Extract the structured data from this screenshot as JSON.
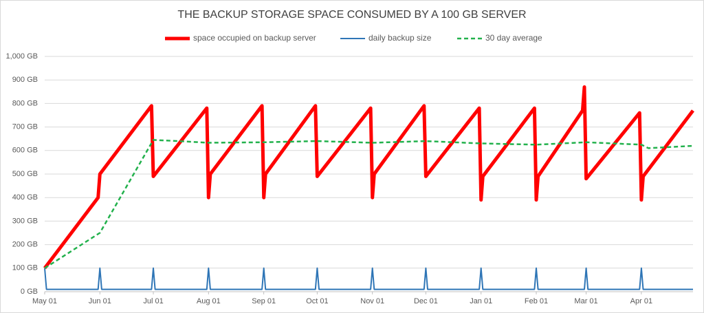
{
  "chart_data": {
    "type": "line",
    "title": "THE BACKUP STORAGE SPACE CONSUMED BY A 100 GB SERVER",
    "xlim": [
      "May 01",
      "Apr 30"
    ],
    "xticks": [
      "May 01",
      "Jun 01",
      "Jul 01",
      "Aug 01",
      "Sep 01",
      "Oct 01",
      "Nov 01",
      "Dec 01",
      "Jan 01",
      "Feb 01",
      "Mar 01",
      "Apr 01"
    ],
    "ylim": [
      0,
      1000
    ],
    "yticks": [
      {
        "value": 0,
        "label": "0 GB"
      },
      {
        "value": 100,
        "label": "100 GB"
      },
      {
        "value": 200,
        "label": "200 GB"
      },
      {
        "value": 300,
        "label": "300 GB"
      },
      {
        "value": 400,
        "label": "400 GB"
      },
      {
        "value": 500,
        "label": "500 GB"
      },
      {
        "value": 600,
        "label": "600 GB"
      },
      {
        "value": 700,
        "label": "700 GB"
      },
      {
        "value": 800,
        "label": "800 GB"
      },
      {
        "value": 900,
        "label": "900 GB"
      },
      {
        "value": 1000,
        "label": "1,000 GB"
      }
    ],
    "grid": true,
    "legend": "top",
    "series": [
      {
        "name": "space occupied on backup server",
        "color": "#ff0000",
        "style": "solid",
        "width": 5,
        "x": [
          "May 01",
          "May 31",
          "Jun 01",
          "Jun 30",
          "Jul 01",
          "Jul 31",
          "Aug 01",
          "Aug 02",
          "Aug 31",
          "Sep 01",
          "Sep 02",
          "Sep 30",
          "Oct 01",
          "Oct 31",
          "Nov 01",
          "Nov 02",
          "Nov 30",
          "Dec 01",
          "Dec 31",
          "Jan 01",
          "Jan 02",
          "Jan 31",
          "Feb 01",
          "Feb 02",
          "Feb 27",
          "Feb 28",
          "Mar 01",
          "Mar 31",
          "Apr 01",
          "Apr 02",
          "Apr 30"
        ],
        "values": [
          100,
          400,
          500,
          790,
          490,
          780,
          400,
          500,
          790,
          400,
          500,
          790,
          490,
          780,
          400,
          500,
          790,
          490,
          780,
          390,
          490,
          780,
          390,
          490,
          770,
          870,
          480,
          760,
          390,
          490,
          770
        ]
      },
      {
        "name": "daily backup size",
        "color": "#2e75b6",
        "style": "solid",
        "width": 2,
        "x": [
          "May 01",
          "May 02",
          "May 31",
          "Jun 01",
          "Jun 02",
          "Jun 30",
          "Jul 01",
          "Jul 02",
          "Jul 31",
          "Aug 01",
          "Aug 02",
          "Aug 31",
          "Sep 01",
          "Sep 02",
          "Sep 30",
          "Oct 01",
          "Oct 02",
          "Oct 31",
          "Nov 01",
          "Nov 02",
          "Nov 30",
          "Dec 01",
          "Dec 02",
          "Dec 31",
          "Jan 01",
          "Jan 02",
          "Jan 31",
          "Feb 01",
          "Feb 02",
          "Feb 28",
          "Mar 01",
          "Mar 02",
          "Mar 31",
          "Apr 01",
          "Apr 02",
          "Apr 30"
        ],
        "values": [
          100,
          10,
          10,
          100,
          10,
          10,
          100,
          10,
          10,
          100,
          10,
          10,
          100,
          10,
          10,
          100,
          10,
          10,
          100,
          10,
          10,
          100,
          10,
          10,
          100,
          10,
          10,
          100,
          10,
          10,
          100,
          10,
          10,
          100,
          10,
          10
        ]
      },
      {
        "name": "30 day average",
        "color": "#22b14c",
        "style": "dashed",
        "width": 2.5,
        "x": [
          "May 01",
          "Jun 01",
          "Jul 01",
          "Jul 15",
          "Aug 01",
          "Sep 01",
          "Oct 01",
          "Nov 01",
          "Dec 01",
          "Jan 01",
          "Feb 01",
          "Mar 01",
          "Apr 01",
          "Apr 05",
          "Apr 30"
        ],
        "values": [
          100,
          250,
          645,
          640,
          633,
          635,
          640,
          633,
          640,
          630,
          625,
          635,
          625,
          610,
          620
        ]
      }
    ]
  }
}
